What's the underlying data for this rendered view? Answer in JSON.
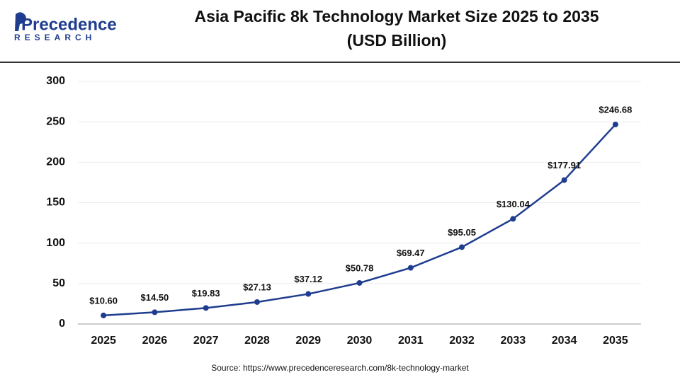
{
  "logo": {
    "name": "Precedence",
    "tagline": "RESEARCH"
  },
  "chart_data": {
    "type": "line",
    "title": "Asia Pacific 8k Technology Market Size 2025 to 2035",
    "subtitle": "(USD Billion)",
    "categories": [
      "2025",
      "2026",
      "2027",
      "2028",
      "2029",
      "2030",
      "2031",
      "2032",
      "2033",
      "2034",
      "2035"
    ],
    "values": [
      10.6,
      14.5,
      19.83,
      27.13,
      37.12,
      50.78,
      69.47,
      95.05,
      130.04,
      177.91,
      246.68
    ],
    "value_labels": [
      "$10.60",
      "$14.50",
      "$19.83",
      "$27.13",
      "$37.12",
      "$50.78",
      "$69.47",
      "$95.05",
      "$130.04",
      "$177.91",
      "$246.68"
    ],
    "color": "#1f3d8f",
    "ylim": [
      0,
      300
    ],
    "yticks": [
      0,
      50,
      100,
      150,
      200,
      250,
      300
    ],
    "grid": true,
    "source": "Source: https://www.precedenceresearch.com/8k-technology-market"
  }
}
